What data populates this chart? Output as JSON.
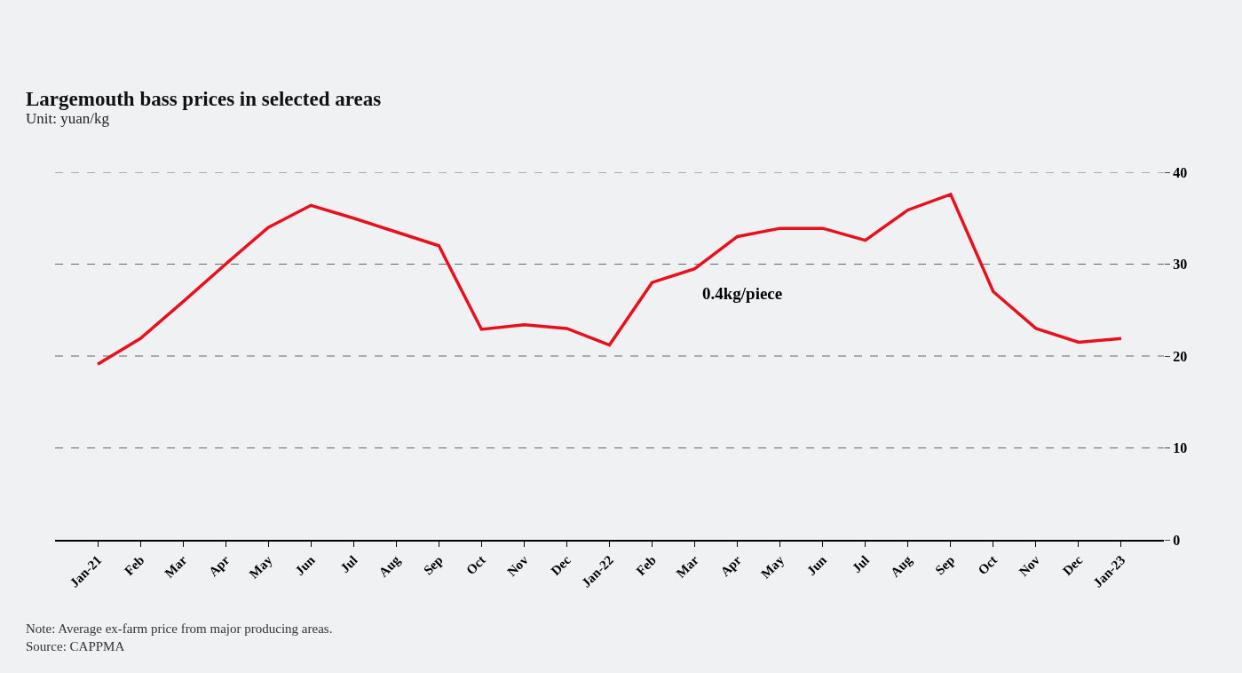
{
  "chart_data": {
    "type": "line",
    "title": "Largemouth bass prices in selected areas",
    "subtitle": "Unit: yuan/kg",
    "categories": [
      "Jan-21",
      "Feb",
      "Mar",
      "Apr",
      "May",
      "Jun",
      "Jul",
      "Aug",
      "Sep",
      "Oct",
      "Nov",
      "Dec",
      "Jan-22",
      "Feb",
      "Mar",
      "Apr",
      "May",
      "Jun",
      "Jul",
      "Aug",
      "Sep",
      "Oct",
      "Nov",
      "Dec",
      "Jan-23"
    ],
    "series": [
      {
        "color": "#e8101c",
        "values": [
          19.1,
          21.9,
          25.9,
          30,
          34,
          36.4,
          35,
          33.5,
          32,
          22.9,
          23.4,
          23,
          21.2,
          28,
          29.5,
          33,
          33.9,
          33.9,
          32.6,
          35.9,
          37.6,
          27,
          23,
          21.5,
          21.9
        ]
      }
    ],
    "ylim": [
      0,
      40
    ],
    "yticks": [
      0,
      10,
      20,
      30,
      40
    ],
    "grid": "y",
    "marker": "none",
    "line_style": "solid",
    "annotations": [
      "0.4kg/piece",
      "Note: Average ex-farm price from major producing areas.",
      "Source: CAPPMA"
    ]
  }
}
